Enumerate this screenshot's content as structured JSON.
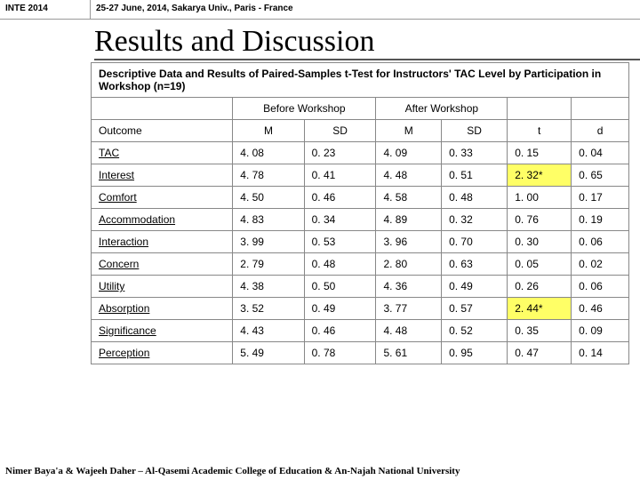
{
  "header": {
    "badge": "INTE 2014",
    "meta": "25-27 June, 2014, Sakarya Univ., Paris - France"
  },
  "title": "Results and Discussion",
  "table": {
    "caption": "Descriptive Data and Results of Paired-Samples t-Test for Instructors' TAC Level by Participation in Workshop (n=19)",
    "group_headers": {
      "before": "Before Workshop",
      "after": "After Workshop"
    },
    "columns": {
      "outcome": "Outcome",
      "m1": "M",
      "sd1": "SD",
      "m2": "M",
      "sd2": "SD",
      "t": "t",
      "d": "d"
    },
    "rows": [
      {
        "outcome": "TAC",
        "m1": "4. 08",
        "sd1": "0. 23",
        "m2": "4. 09",
        "sd2": "0. 33",
        "t": "0. 15",
        "d": "0. 04",
        "hl": false
      },
      {
        "outcome": "Interest",
        "m1": "4. 78",
        "sd1": "0. 41",
        "m2": "4. 48",
        "sd2": "0. 51",
        "t": "2. 32*",
        "d": "0. 65",
        "hl": true
      },
      {
        "outcome": "Comfort",
        "m1": "4. 50",
        "sd1": "0. 46",
        "m2": "4. 58",
        "sd2": "0. 48",
        "t": "1. 00",
        "d": "0. 17",
        "hl": false
      },
      {
        "outcome": "Accommodation",
        "m1": "4. 83",
        "sd1": "0. 34",
        "m2": "4. 89",
        "sd2": "0. 32",
        "t": "0. 76",
        "d": "0. 19",
        "hl": false
      },
      {
        "outcome": "Interaction",
        "m1": "3. 99",
        "sd1": "0. 53",
        "m2": "3. 96",
        "sd2": "0. 70",
        "t": "0. 30",
        "d": "0. 06",
        "hl": false
      },
      {
        "outcome": "Concern",
        "m1": "2. 79",
        "sd1": "0. 48",
        "m2": "2. 80",
        "sd2": "0. 63",
        "t": "0. 05",
        "d": "0. 02",
        "hl": false
      },
      {
        "outcome": "Utility",
        "m1": "4. 38",
        "sd1": "0. 50",
        "m2": "4. 36",
        "sd2": "0. 49",
        "t": "0. 26",
        "d": "0. 06",
        "hl": false
      },
      {
        "outcome": "Absorption",
        "m1": "3. 52",
        "sd1": "0. 49",
        "m2": "3. 77",
        "sd2": "0. 57",
        "t": "2. 44*",
        "d": "0. 46",
        "hl": true
      },
      {
        "outcome": "Significance",
        "m1": "4. 43",
        "sd1": "0. 46",
        "m2": "4. 48",
        "sd2": "0. 52",
        "t": "0. 35",
        "d": "0. 09",
        "hl": false
      },
      {
        "outcome": "Perception",
        "m1": "5. 49",
        "sd1": "0. 78",
        "m2": "5. 61",
        "sd2": "0. 95",
        "t": "0. 47",
        "d": "0. 14",
        "hl": false
      }
    ],
    "highlight_color": "#ffff66"
  },
  "footer": "Nimer Baya'a & Wajeeh Daher – Al-Qasemi Academic College of Education & An-Najah National University"
}
